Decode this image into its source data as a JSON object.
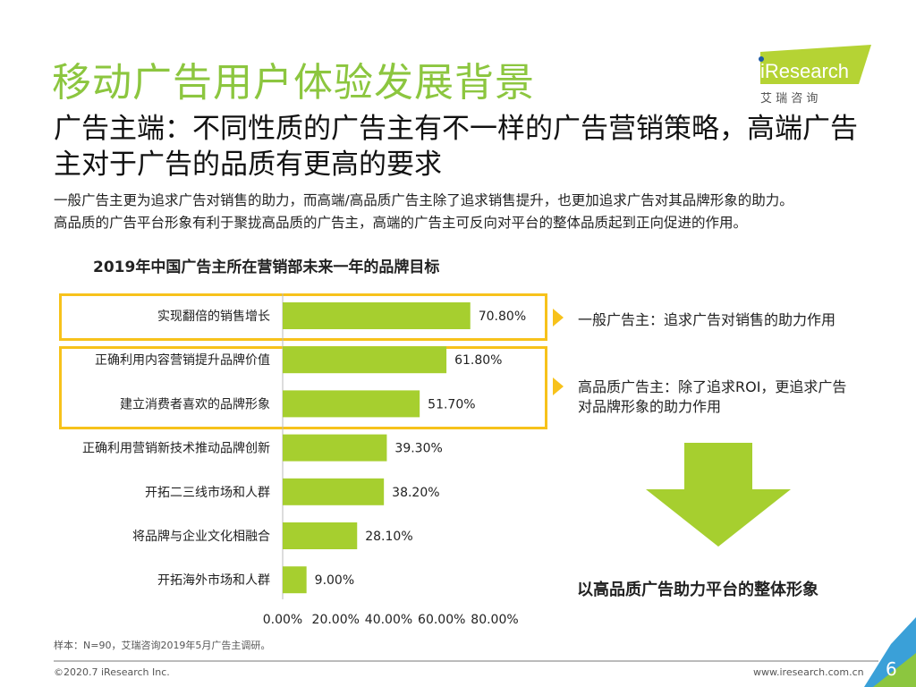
{
  "title": "移动广告用户体验发展背景",
  "logo": {
    "text": "iResearch",
    "sub": "艾 瑞 咨 询"
  },
  "subtitle": "广告主端：不同性质的广告主有不一样的广告营销策略，高端广告主对于广告的品质有更高的要求",
  "description": [
    "一般广告主更为追求广告对销售的助力，而高端/高品质广告主除了追求销售提升，也更加追求广告对其品牌形象的助力。",
    "高品质的广告平台形象有利于聚拢高品质的广告主，高端的广告主可反向对平台的整体品质起到正向促进的作用。"
  ],
  "chart_data": {
    "type": "bar",
    "orientation": "horizontal",
    "title": "2019年中国广告主所在营销部未来一年的品牌目标",
    "categories": [
      "实现翻倍的销售增长",
      "正确利用内容营销提升品牌价值",
      "建立消费者喜欢的品牌形象",
      "正确利用营销新技术推动品牌创新",
      "开拓二三线市场和人群",
      "将品牌与企业文化相融合",
      "开拓海外市场和人群"
    ],
    "values": [
      70.8,
      61.8,
      51.7,
      39.3,
      38.2,
      28.1,
      9.0
    ],
    "data_labels": [
      "70.80%",
      "61.80%",
      "51.70%",
      "39.30%",
      "38.20%",
      "28.10%",
      "9.00%"
    ],
    "xlim": [
      0,
      80
    ],
    "tick_labels": [
      "0.00%",
      "20.00%",
      "40.00%",
      "60.00%",
      "80.00%"
    ],
    "grid": false,
    "color": "#a6cf2f"
  },
  "callouts": [
    "一般广告主：追求广告对销售的助力作用",
    "高品质广告主：除了追求ROI，更追求广告对品牌形象的助力作用"
  ],
  "conclusion": "以高品质广告助力平台的整体形象",
  "footer": {
    "note": "样本：N=90，艾瑞咨询2019年5月广告主调研。",
    "copyright": "©2020.7 iResearch Inc.",
    "url": "www.iresearch.com.cn",
    "page": "6"
  },
  "colors": {
    "accent": "#8cc63f",
    "highlight": "#f7c21b"
  }
}
